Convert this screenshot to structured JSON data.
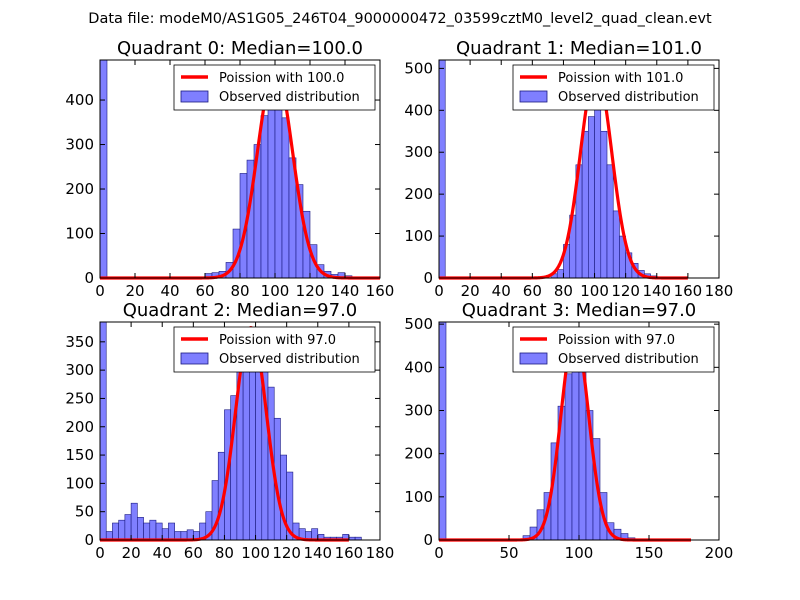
{
  "figure_title": "Data file: modeM0/AS1G05_246T04_9000000472_03599cztM0_level2_quad_clean.evt",
  "colors": {
    "bar_fill": "#7f7fff",
    "bar_stroke": "#1a1a80",
    "curve": "#ff0000",
    "axes": "#000000"
  },
  "chart_data": [
    {
      "type": "bar",
      "title": "Quadrant 0: Median=100.0",
      "xlim": [
        0,
        160
      ],
      "ylim": [
        0,
        490
      ],
      "xticks": [
        0,
        20,
        40,
        60,
        80,
        100,
        120,
        140,
        160
      ],
      "yticks": [
        0,
        100,
        200,
        300,
        400
      ],
      "bin_width": 4,
      "bin_starts": [
        0,
        60,
        64,
        68,
        72,
        76,
        80,
        84,
        88,
        92,
        96,
        100,
        104,
        108,
        112,
        116,
        120,
        124,
        128,
        132,
        136,
        140
      ],
      "values": [
        490,
        10,
        12,
        15,
        35,
        110,
        235,
        265,
        300,
        365,
        395,
        445,
        360,
        270,
        210,
        150,
        75,
        30,
        15,
        8,
        12,
        5
      ],
      "legend": [
        "Poission with 100.0",
        "Observed distribution"
      ],
      "poisson_mean": 100.0,
      "poisson_peak": 470,
      "curve_x": [
        0,
        160
      ]
    },
    {
      "type": "bar",
      "title": "Quadrant 1: Median=101.0",
      "xlim": [
        0,
        180
      ],
      "ylim": [
        0,
        520
      ],
      "xticks": [
        0,
        20,
        40,
        60,
        80,
        100,
        120,
        140,
        160,
        180
      ],
      "yticks": [
        0,
        100,
        200,
        300,
        400,
        500
      ],
      "bin_width": 4,
      "bin_starts": [
        0,
        72,
        76,
        80,
        84,
        88,
        92,
        96,
        100,
        104,
        108,
        112,
        116,
        120,
        124,
        128,
        132,
        136
      ],
      "values": [
        520,
        10,
        20,
        80,
        150,
        270,
        350,
        385,
        420,
        350,
        270,
        160,
        100,
        60,
        35,
        18,
        10,
        5
      ],
      "legend": [
        "Poission with 101.0",
        "Observed distribution"
      ],
      "poisson_mean": 101.0,
      "poisson_peak": 495,
      "curve_x": [
        0,
        160
      ]
    },
    {
      "type": "bar",
      "title": "Quadrant 2: Median=97.0",
      "xlim": [
        0,
        180
      ],
      "ylim": [
        0,
        385
      ],
      "xticks": [
        0,
        20,
        40,
        60,
        80,
        100,
        120,
        140,
        160,
        180
      ],
      "yticks": [
        0,
        50,
        100,
        150,
        200,
        250,
        300,
        350
      ],
      "bin_width": 4,
      "bin_starts": [
        0,
        4,
        8,
        12,
        16,
        20,
        24,
        28,
        32,
        36,
        40,
        44,
        48,
        52,
        56,
        60,
        64,
        68,
        72,
        76,
        80,
        84,
        88,
        92,
        96,
        100,
        104,
        108,
        112,
        116,
        120,
        124,
        128,
        132,
        136,
        140,
        144,
        148,
        152,
        156,
        160,
        164
      ],
      "values": [
        385,
        15,
        30,
        35,
        45,
        65,
        40,
        30,
        35,
        30,
        20,
        30,
        15,
        15,
        18,
        15,
        30,
        50,
        105,
        155,
        230,
        255,
        300,
        330,
        345,
        355,
        310,
        270,
        215,
        150,
        120,
        30,
        20,
        15,
        20,
        10,
        5,
        5,
        5,
        10,
        5,
        5
      ],
      "legend": [
        "Poission with 97.0",
        "Observed distribution"
      ],
      "poisson_mean": 97.0,
      "poisson_peak": 375,
      "curve_x": [
        0,
        160
      ]
    },
    {
      "type": "bar",
      "title": "Quadrant 3: Median=97.0",
      "xlim": [
        0,
        200
      ],
      "ylim": [
        0,
        505
      ],
      "xticks": [
        0,
        50,
        100,
        150,
        200
      ],
      "yticks": [
        0,
        100,
        200,
        300,
        400,
        500
      ],
      "bin_width": 5,
      "bin_starts": [
        0,
        60,
        65,
        70,
        75,
        80,
        85,
        90,
        95,
        100,
        105,
        110,
        115,
        120,
        125,
        130,
        135
      ],
      "values": [
        505,
        10,
        30,
        70,
        110,
        225,
        310,
        385,
        455,
        420,
        300,
        235,
        110,
        40,
        25,
        15,
        5
      ],
      "legend": [
        "Poission with 97.0",
        "Observed distribution"
      ],
      "poisson_mean": 97.0,
      "poisson_peak": 480,
      "curve_x": [
        0,
        180
      ]
    }
  ]
}
